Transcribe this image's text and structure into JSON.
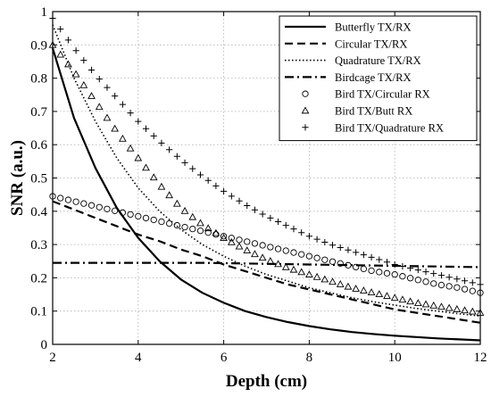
{
  "chart_data": {
    "type": "line",
    "title": "",
    "xlabel": "Depth (cm)",
    "ylabel": "SNR (a.u.)",
    "xlim": [
      2,
      12
    ],
    "ylim": [
      0,
      1
    ],
    "xticks": [
      "2",
      "4",
      "6",
      "8",
      "10",
      "12"
    ],
    "yticks": [
      "0",
      "0.1",
      "0.2",
      "0.3",
      "0.4",
      "0.5",
      "0.6",
      "0.7",
      "0.8",
      "0.9",
      "1"
    ],
    "grid": true,
    "legend_position": "top-right",
    "x": [
      2,
      2.5,
      3,
      3.5,
      4,
      4.5,
      5,
      5.5,
      6,
      6.5,
      7,
      7.5,
      8,
      8.5,
      9,
      9.5,
      10,
      10.5,
      11,
      11.5,
      12
    ],
    "series": [
      {
        "name": "Butterfly TX/RX",
        "style": "solid",
        "values": [
          0.89,
          0.68,
          0.53,
          0.41,
          0.32,
          0.25,
          0.195,
          0.155,
          0.125,
          0.1,
          0.082,
          0.067,
          0.055,
          0.045,
          0.037,
          0.031,
          0.026,
          0.022,
          0.018,
          0.015,
          0.012
        ]
      },
      {
        "name": "Circular TX/RX",
        "style": "dashed",
        "values": [
          0.43,
          0.405,
          0.38,
          0.355,
          0.33,
          0.31,
          0.285,
          0.265,
          0.24,
          0.22,
          0.2,
          0.18,
          0.165,
          0.15,
          0.135,
          0.12,
          0.105,
          0.095,
          0.085,
          0.075,
          0.065
        ]
      },
      {
        "name": "Quadrature TX/RX",
        "style": "dotted",
        "values": [
          0.96,
          0.8,
          0.67,
          0.56,
          0.47,
          0.4,
          0.345,
          0.3,
          0.265,
          0.235,
          0.21,
          0.19,
          0.17,
          0.155,
          0.14,
          0.128,
          0.118,
          0.108,
          0.1,
          0.092,
          0.085
        ]
      },
      {
        "name": "Birdcage TX/RX",
        "style": "dashdot",
        "values": [
          0.245,
          0.245,
          0.245,
          0.245,
          0.245,
          0.245,
          0.245,
          0.245,
          0.244,
          0.243,
          0.242,
          0.241,
          0.24,
          0.239,
          0.238,
          0.237,
          0.236,
          0.235,
          0.234,
          0.233,
          0.232
        ]
      },
      {
        "name": "Bird TX/Circular RX",
        "style": "circle",
        "values": [
          0.445,
          0.43,
          0.415,
          0.4,
          0.385,
          0.37,
          0.355,
          0.34,
          0.325,
          0.31,
          0.295,
          0.28,
          0.265,
          0.25,
          0.235,
          0.22,
          0.21,
          0.195,
          0.18,
          0.17,
          0.155
        ]
      },
      {
        "name": "Bird TX/Butt RX",
        "style": "triangle",
        "values": [
          0.9,
          0.82,
          0.73,
          0.64,
          0.56,
          0.48,
          0.41,
          0.36,
          0.32,
          0.285,
          0.255,
          0.23,
          0.21,
          0.19,
          0.17,
          0.155,
          0.14,
          0.125,
          0.115,
          0.105,
          0.095
        ]
      },
      {
        "name": "Bird TX/Quadrature RX",
        "style": "plus",
        "values": [
          0.98,
          0.89,
          0.81,
          0.74,
          0.67,
          0.61,
          0.555,
          0.505,
          0.46,
          0.42,
          0.385,
          0.355,
          0.325,
          0.3,
          0.28,
          0.26,
          0.24,
          0.225,
          0.21,
          0.195,
          0.18
        ]
      }
    ]
  }
}
